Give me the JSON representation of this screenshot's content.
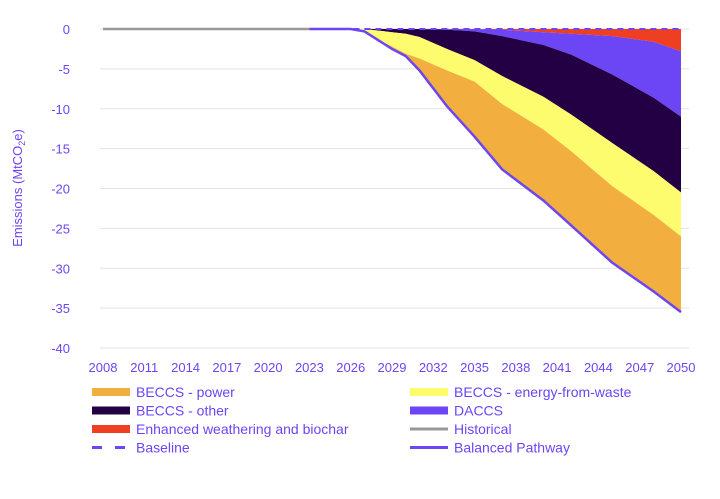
{
  "chart_data": {
    "type": "area",
    "title": "",
    "ylabel": "Emissions (MtCO2e)",
    "ylabel_parts": {
      "main": "Emissions (MtCO",
      "sub": "2",
      "end": "e)"
    },
    "xlabel": "",
    "ylim": [
      -40,
      0
    ],
    "xlim": [
      2008,
      2050
    ],
    "yticks": [
      0,
      -5,
      -10,
      -15,
      -20,
      -25,
      -30,
      -35,
      -40
    ],
    "xticks": [
      "2008",
      "2011",
      "2014",
      "2017",
      "2020",
      "2023",
      "2026",
      "2029",
      "2032",
      "2035",
      "2038",
      "2041",
      "2044",
      "2047",
      "2050"
    ],
    "grid": true,
    "legend_position": "bottom",
    "x": [
      2026,
      2027,
      2028,
      2029,
      2030,
      2031,
      2033,
      2035,
      2037,
      2040,
      2042,
      2045,
      2048,
      2050
    ],
    "stacked_series": [
      {
        "name": "Enhanced weathering and biochar",
        "color": "#ee3f23",
        "values": [
          0,
          0,
          0,
          0,
          0,
          0,
          0,
          0,
          -0.1,
          -0.4,
          -0.6,
          -0.9,
          -1.6,
          -2.8
        ]
      },
      {
        "name": "DACCS",
        "color": "#6c45f5",
        "values": [
          0,
          0,
          0,
          0,
          0,
          0,
          -0.1,
          -0.3,
          -0.8,
          -1.6,
          -2.6,
          -4.8,
          -7.0,
          -8.2
        ]
      },
      {
        "name": "BECCS - other",
        "color": "#230043",
        "values": [
          0,
          0,
          -0.2,
          -0.4,
          -0.6,
          -1.0,
          -2.4,
          -3.6,
          -5.0,
          -6.5,
          -7.5,
          -8.6,
          -9.2,
          -9.5
        ]
      },
      {
        "name": "BECCS - energy-from-waste",
        "color": "#fdfc6e",
        "values": [
          0,
          -0.3,
          -1.2,
          -1.8,
          -2.5,
          -2.7,
          -2.7,
          -2.7,
          -3.5,
          -4.1,
          -4.6,
          -5.4,
          -5.5,
          -5.5
        ]
      },
      {
        "name": "BECCS - power",
        "color": "#f2ae3e",
        "values": [
          0,
          0,
          0,
          -0.3,
          -0.3,
          -1.5,
          -4.5,
          -6.9,
          -8.2,
          -8.9,
          -9.3,
          -9.6,
          -9.6,
          -9.5
        ]
      }
    ],
    "lines": [
      {
        "name": "Historical",
        "color": "#999999",
        "style": "solid",
        "x": [
          2008,
          2023
        ],
        "values": [
          0,
          0
        ]
      },
      {
        "name": "Baseline",
        "color": "#6c45f5",
        "style": "dashed",
        "x": [
          2023,
          2050
        ],
        "values": [
          0,
          0
        ]
      },
      {
        "name": "Balanced Pathway",
        "color": "#6c45f5",
        "style": "solid",
        "x": [
          2023,
          2026,
          2027,
          2028,
          2029,
          2030,
          2031,
          2033,
          2035,
          2037,
          2040,
          2042,
          2045,
          2048,
          2050
        ],
        "values": [
          0,
          0,
          -0.3,
          -1.4,
          -2.5,
          -3.4,
          -5.2,
          -9.7,
          -13.5,
          -17.6,
          -21.5,
          -24.6,
          -29.3,
          -32.9,
          -35.5
        ]
      }
    ],
    "legend": [
      {
        "label": "BECCS - power",
        "color": "#f2ae3e",
        "kind": "area"
      },
      {
        "label": "BECCS - energy-from-waste",
        "color": "#fdfc6e",
        "kind": "area"
      },
      {
        "label": "BECCS - other",
        "color": "#230043",
        "kind": "area"
      },
      {
        "label": "DACCS",
        "color": "#6c45f5",
        "kind": "area"
      },
      {
        "label": "Enhanced weathering and biochar",
        "color": "#ee3f23",
        "kind": "area"
      },
      {
        "label": "Historical",
        "color": "#999999",
        "kind": "line"
      },
      {
        "label": "Baseline",
        "color": "#6c45f5",
        "kind": "dashed"
      },
      {
        "label": "Balanced Pathway",
        "color": "#6c45f5",
        "kind": "line"
      }
    ]
  }
}
